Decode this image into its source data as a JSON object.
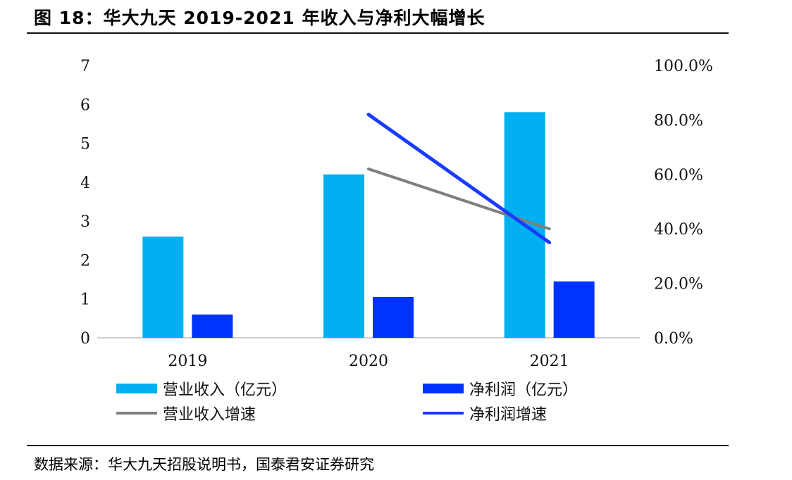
{
  "figure": {
    "title": "图 18：华大九天 2019-2021 年收入与净利大幅增长",
    "source": "数据来源：华大九天招股说明书，国泰君安证券研究"
  },
  "chart_data": {
    "type": "bar",
    "categories": [
      "2019",
      "2020",
      "2021"
    ],
    "series": [
      {
        "name": "营业收入（亿元）",
        "type": "bar",
        "axis": "left",
        "color": "#00B0F0",
        "values": [
          2.6,
          4.2,
          5.8
        ]
      },
      {
        "name": "净利润（亿元）",
        "type": "bar",
        "axis": "left",
        "color": "#0033FF",
        "values": [
          0.6,
          1.05,
          1.45
        ]
      },
      {
        "name": "营业收入增速",
        "type": "line",
        "axis": "right",
        "color": "#7F7F7F",
        "values": [
          null,
          0.62,
          0.4
        ]
      },
      {
        "name": "净利润增速",
        "type": "line",
        "axis": "right",
        "color": "#1A3CFF",
        "values": [
          null,
          0.82,
          0.35
        ]
      }
    ],
    "y_left": {
      "min": 0,
      "max": 7,
      "ticks": [
        "0",
        "1",
        "2",
        "3",
        "4",
        "5",
        "6",
        "7"
      ]
    },
    "y_right": {
      "min": 0,
      "max": 1.0,
      "ticks": [
        "0.0%",
        "20.0%",
        "40.0%",
        "60.0%",
        "80.0%",
        "100.0%"
      ]
    },
    "grid": false,
    "legend": "bottom"
  }
}
